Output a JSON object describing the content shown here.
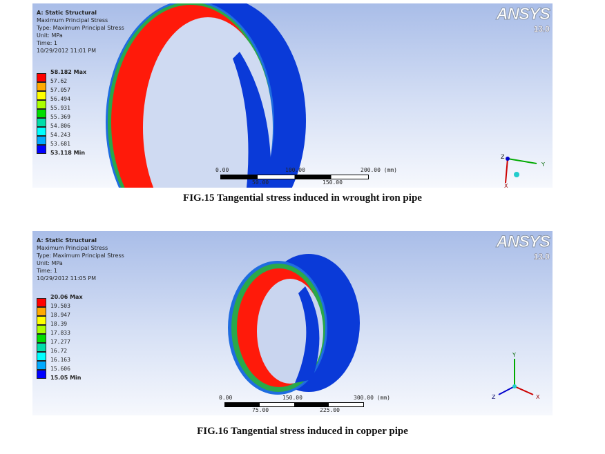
{
  "figures": [
    {
      "caption": "FIG.15 Tangential stress induced in wrought iron pipe",
      "info": {
        "title": "A: Static Structural",
        "result": "Maximum Principal Stress",
        "type": "Type: Maximum Principal Stress",
        "unit": "Unit: MPa",
        "time": "Time: 1",
        "date": "10/29/2012 11:01 PM"
      },
      "legend": [
        "58.182 Max",
        "57.62",
        "57.057",
        "56.494",
        "55.931",
        "55.369",
        "54.806",
        "54.243",
        "53.681",
        "53.118 Min"
      ],
      "scale": {
        "top": [
          "0.00",
          "100.00",
          "200.00 (mm)"
        ],
        "bottom": [
          "50.00",
          "150.00"
        ]
      },
      "logo": {
        "name": "ANSYS",
        "version": "13.0"
      },
      "triad": {
        "axes": [
          "Z",
          "Y",
          "X"
        ]
      }
    },
    {
      "caption": "FIG.16 Tangential stress induced in copper pipe",
      "info": {
        "title": "A: Static Structural",
        "result": "Maximum Principal Stress",
        "type": "Type: Maximum Principal Stress",
        "unit": "Unit: MPa",
        "time": "Time: 1",
        "date": "10/29/2012 11:05 PM"
      },
      "legend": [
        "20.06 Max",
        "19.503",
        "18.947",
        "18.39",
        "17.833",
        "17.277",
        "16.72",
        "16.163",
        "15.606",
        "15.05 Min"
      ],
      "scale": {
        "top": [
          "0.00",
          "150.00",
          "300.00 (mm)"
        ],
        "bottom": [
          "75.00",
          "225.00"
        ]
      },
      "logo": {
        "name": "ANSYS",
        "version": "13.0"
      },
      "triad": {
        "axes": [
          "Y",
          "Z",
          "X"
        ]
      }
    }
  ],
  "legend_colors": [
    "#ff0000",
    "#ffaa00",
    "#ffff00",
    "#aaff00",
    "#00dd00",
    "#00ddaa",
    "#00ffff",
    "#00aaff",
    "#0000ff"
  ]
}
